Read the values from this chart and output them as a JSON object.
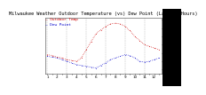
{
  "title": "Milwaukee Weather Outdoor Temperature (vs) Dew Point (Last 24 Hours)",
  "title_fontsize": 3.8,
  "legend_label_red": "Outdoor Temp",
  "legend_label_blue": "Dew Point",
  "legend_fontsize": 3.2,
  "background_color": "#ffffff",
  "plot_bg_color": "#ffffff",
  "red_line_color": "#cc0000",
  "blue_line_color": "#0000cc",
  "grid_color": "#bbbbbb",
  "temp_values": [
    28,
    27,
    25,
    24,
    22,
    21,
    20,
    24,
    34,
    44,
    53,
    58,
    62,
    65,
    66,
    65,
    62,
    57,
    50,
    45,
    40,
    38,
    36,
    34
  ],
  "dew_values": [
    26,
    25,
    24,
    22,
    20,
    18,
    16,
    15,
    14,
    13,
    12,
    15,
    18,
    22,
    24,
    26,
    28,
    27,
    24,
    20,
    19,
    20,
    22,
    24
  ],
  "ylim": [
    5,
    72
  ],
  "yticks": [
    10,
    20,
    30,
    40,
    50,
    60,
    70
  ],
  "tick_fontsize": 3.0,
  "x_labels": [
    "1",
    "",
    "2",
    "",
    "3",
    "",
    "4",
    "",
    "5",
    "",
    "6",
    "",
    "7",
    "",
    "8",
    "",
    "9",
    "",
    "10",
    "",
    "11",
    "",
    "12",
    ""
  ],
  "n_points": 24
}
